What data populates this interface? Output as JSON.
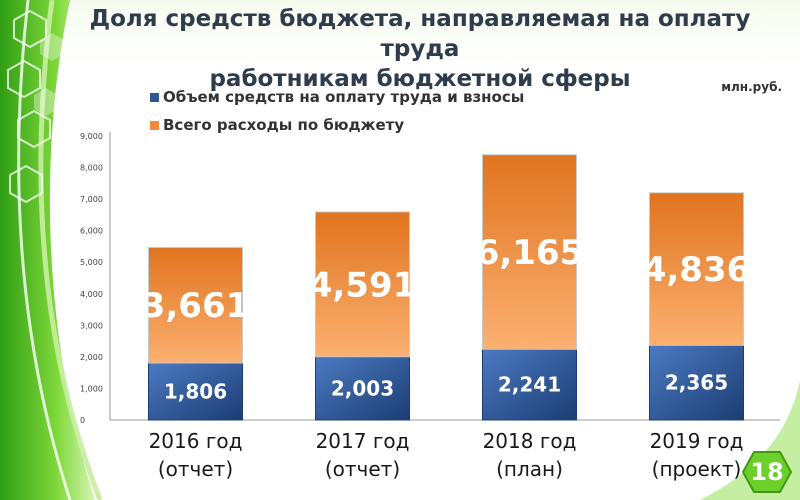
{
  "slide": {
    "title_line1": "Доля средств бюджета, направляемая на оплату труда",
    "title_line2": "работникам бюджетной сферы",
    "unit": "млн.руб.",
    "page_number": "18"
  },
  "colors": {
    "blue": "#2c5795",
    "orange": "#f28a3c",
    "title": "#2e3c4c",
    "green_accent": "#5cc51e"
  },
  "chart_data": {
    "type": "bar",
    "stacked": true,
    "categories": [
      [
        "2016 год",
        "(отчет)"
      ],
      [
        "2017 год",
        "(отчет)"
      ],
      [
        "2018 год",
        "(план)"
      ],
      [
        "2019 год",
        "(проект)"
      ]
    ],
    "series": [
      {
        "name": "Объем средств на оплату труда и взносы",
        "values": [
          1806,
          2003,
          2241,
          2365
        ],
        "labels": [
          "1,806",
          "2,003",
          "2,241",
          "2,365"
        ],
        "color": "#2c5795"
      },
      {
        "name": "Всего расходы по бюджету",
        "values": [
          3661,
          4591,
          6165,
          4836
        ],
        "labels": [
          "3,661",
          "4,591",
          "6,165",
          "4,836"
        ],
        "color": "#f28a3c"
      }
    ],
    "ylim": [
      0,
      9000
    ],
    "yticks": [
      0,
      1000,
      2000,
      3000,
      4000,
      5000,
      6000,
      7000,
      8000,
      9000
    ],
    "ytick_labels": [
      "0",
      "1,000",
      "2,000",
      "3,000",
      "4,000",
      "5,000",
      "6,000",
      "7,000",
      "8,000",
      "9,000"
    ],
    "legend_position": "top-left",
    "grid": false
  }
}
